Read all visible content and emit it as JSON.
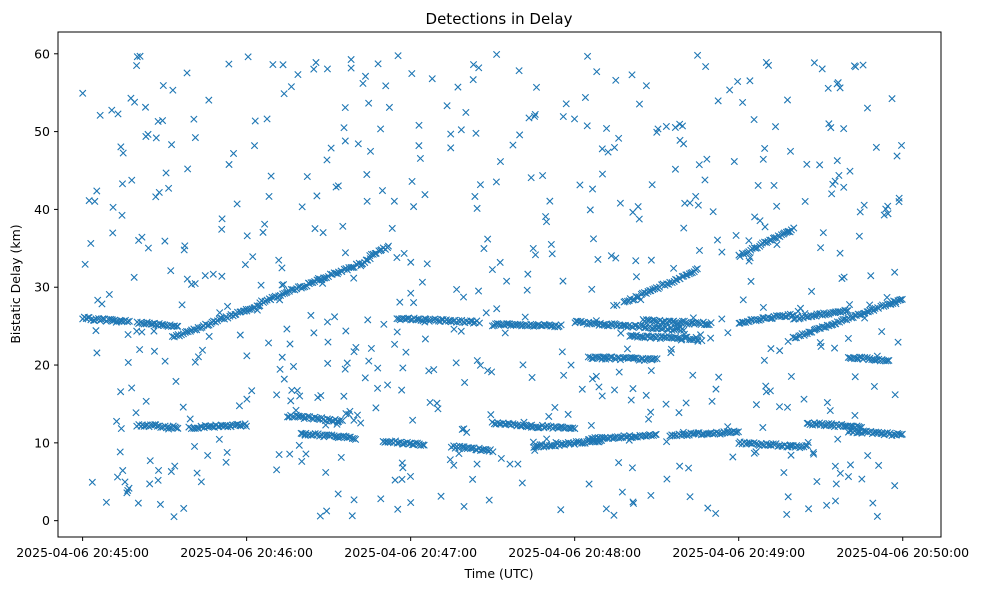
{
  "chart_data": {
    "type": "scatter",
    "title": "Detections in Delay",
    "xlabel": "Time (UTC)",
    "ylabel": "Bistatic Delay (km)",
    "x_ticks": [
      "2025-04-06 20:45:00",
      "2025-04-06 20:46:00",
      "2025-04-06 20:47:00",
      "2025-04-06 20:48:00",
      "2025-04-06 20:49:00",
      "2025-04-06 20:50:00"
    ],
    "y_ticks": [
      "0",
      "10",
      "20",
      "30",
      "40",
      "50",
      "60"
    ],
    "xlim": [
      "2025-04-06 20:44:51",
      "2025-04-06 20:50:14"
    ],
    "ylim": [
      -2.1,
      62.8
    ],
    "marker": "x",
    "color": "#1f77b4",
    "grid": false,
    "points_note_sample_x_unit": "time of detection",
    "tracks": [
      {
        "x_start": "2025-04-06 20:45:00",
        "x_end": "2025-04-06 20:45:17",
        "y_start": 26.0,
        "y_end": 25.6
      },
      {
        "x_start": "2025-04-06 20:45:20",
        "x_end": "2025-04-06 20:45:35",
        "y_start": 25.5,
        "y_end": 25.0
      },
      {
        "x_start": "2025-04-06 20:45:33",
        "x_end": "2025-04-06 20:46:05",
        "y_start": 23.5,
        "y_end": 27.8
      },
      {
        "x_start": "2025-04-06 20:46:05",
        "x_end": "2025-04-06 20:46:45",
        "y_start": 28.0,
        "y_end": 33.5
      },
      {
        "x_start": "2025-04-06 20:46:45",
        "x_end": "2025-04-06 20:46:52",
        "y_start": 34.0,
        "y_end": 35.2
      },
      {
        "x_start": "2025-04-06 20:45:20",
        "x_end": "2025-04-06 20:45:35",
        "y_start": 12.3,
        "y_end": 12.0
      },
      {
        "x_start": "2025-04-06 20:45:40",
        "x_end": "2025-04-06 20:46:00",
        "y_start": 12.0,
        "y_end": 12.3
      },
      {
        "x_start": "2025-04-06 20:46:15",
        "x_end": "2025-04-06 20:46:35",
        "y_start": 13.5,
        "y_end": 12.8
      },
      {
        "x_start": "2025-04-06 20:46:20",
        "x_end": "2025-04-06 20:46:40",
        "y_start": 11.2,
        "y_end": 10.6
      },
      {
        "x_start": "2025-04-06 20:46:50",
        "x_end": "2025-04-06 20:47:05",
        "y_start": 10.2,
        "y_end": 9.8
      },
      {
        "x_start": "2025-04-06 20:46:55",
        "x_end": "2025-04-06 20:47:25",
        "y_start": 26.0,
        "y_end": 25.5
      },
      {
        "x_start": "2025-04-06 20:47:15",
        "x_end": "2025-04-06 20:47:30",
        "y_start": 9.5,
        "y_end": 9.0
      },
      {
        "x_start": "2025-04-06 20:47:30",
        "x_end": "2025-04-06 20:47:55",
        "y_start": 25.2,
        "y_end": 25.0
      },
      {
        "x_start": "2025-04-06 20:47:30",
        "x_end": "2025-04-06 20:48:00",
        "y_start": 12.5,
        "y_end": 11.8
      },
      {
        "x_start": "2025-04-06 20:47:45",
        "x_end": "2025-04-06 20:48:10",
        "y_start": 9.5,
        "y_end": 10.3
      },
      {
        "x_start": "2025-04-06 20:48:05",
        "x_end": "2025-04-06 20:48:30",
        "y_start": 10.5,
        "y_end": 11.0
      },
      {
        "x_start": "2025-04-06 20:48:00",
        "x_end": "2025-04-06 20:48:40",
        "y_start": 25.5,
        "y_end": 24.5
      },
      {
        "x_start": "2025-04-06 20:48:05",
        "x_end": "2025-04-06 20:48:30",
        "y_start": 21.0,
        "y_end": 20.7
      },
      {
        "x_start": "2025-04-06 20:48:18",
        "x_end": "2025-04-06 20:48:45",
        "y_start": 28.0,
        "y_end": 32.2
      },
      {
        "x_start": "2025-04-06 20:48:25",
        "x_end": "2025-04-06 20:48:50",
        "y_start": 25.7,
        "y_end": 25.3
      },
      {
        "x_start": "2025-04-06 20:48:20",
        "x_end": "2025-04-06 20:48:45",
        "y_start": 23.7,
        "y_end": 23.4
      },
      {
        "x_start": "2025-04-06 20:48:35",
        "x_end": "2025-04-06 20:49:00",
        "y_start": 11.0,
        "y_end": 11.4
      },
      {
        "x_start": "2025-04-06 20:49:00",
        "x_end": "2025-04-06 20:49:25",
        "y_start": 10.0,
        "y_end": 9.5
      },
      {
        "x_start": "2025-04-06 20:49:00",
        "x_end": "2025-04-06 20:49:20",
        "y_start": 34.0,
        "y_end": 37.5
      },
      {
        "x_start": "2025-04-06 20:49:00",
        "x_end": "2025-04-06 20:49:20",
        "y_start": 25.5,
        "y_end": 26.5
      },
      {
        "x_start": "2025-04-06 20:49:20",
        "x_end": "2025-04-06 20:49:40",
        "y_start": 26.0,
        "y_end": 27.0
      },
      {
        "x_start": "2025-04-06 20:49:20",
        "x_end": "2025-04-06 20:50:00",
        "y_start": 23.5,
        "y_end": 28.5
      },
      {
        "x_start": "2025-04-06 20:49:25",
        "x_end": "2025-04-06 20:49:45",
        "y_start": 12.5,
        "y_end": 12.0
      },
      {
        "x_start": "2025-04-06 20:49:40",
        "x_end": "2025-04-06 20:50:00",
        "y_start": 11.5,
        "y_end": 11.0
      },
      {
        "x_start": "2025-04-06 20:49:40",
        "x_end": "2025-04-06 20:49:55",
        "y_start": 21.0,
        "y_end": 20.6
      }
    ],
    "scatter_seed": 7,
    "scatter_count": 620,
    "scatter_y_range": [
      0.5,
      60.0
    ]
  }
}
